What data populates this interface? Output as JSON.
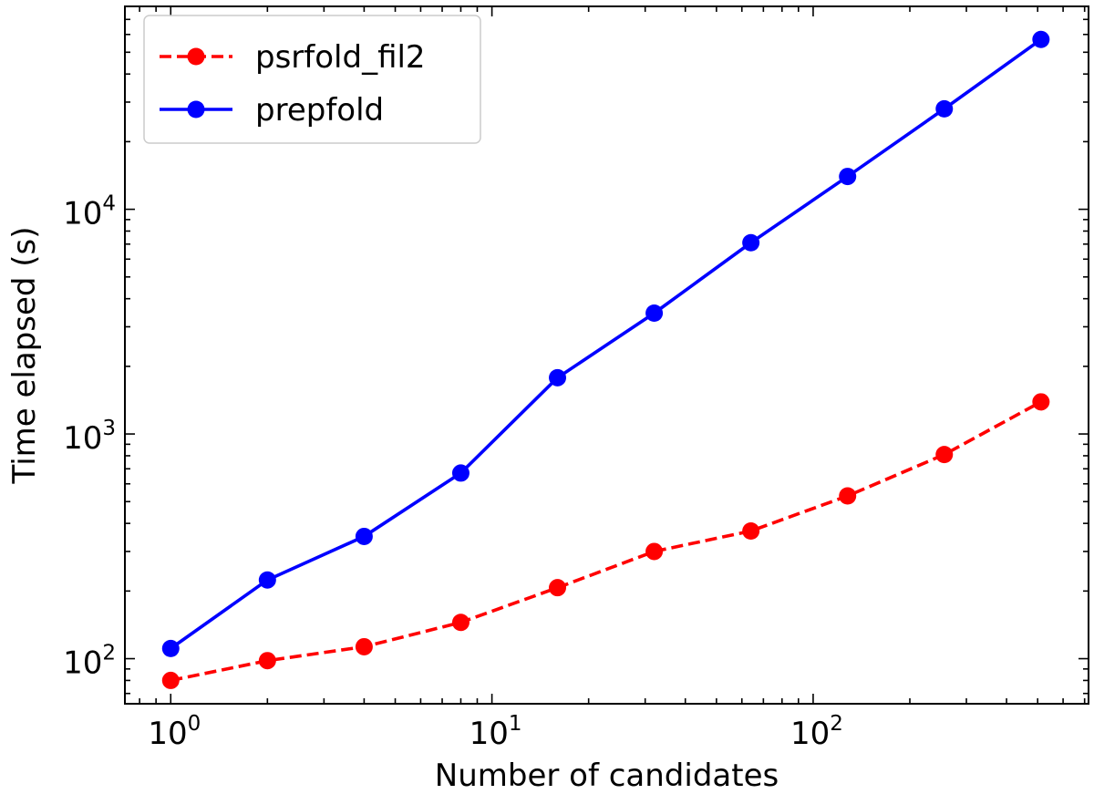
{
  "chart_data": {
    "type": "line",
    "xlabel": "Number of candidates",
    "ylabel": "Time elapsed (s)",
    "xscale": "log",
    "yscale": "log",
    "xlim": [
      0.72,
      720
    ],
    "ylim": [
      63,
      80000
    ],
    "x": [
      1,
      2,
      4,
      8,
      16,
      32,
      64,
      128,
      256,
      512
    ],
    "x_ticks": [
      {
        "value": 1,
        "base": "10",
        "exp": "0"
      },
      {
        "value": 10,
        "base": "10",
        "exp": "1"
      },
      {
        "value": 100,
        "base": "10",
        "exp": "2"
      }
    ],
    "y_ticks": [
      {
        "value": 100,
        "base": "10",
        "exp": "2"
      },
      {
        "value": 1000,
        "base": "10",
        "exp": "3"
      },
      {
        "value": 10000,
        "base": "10",
        "exp": "4"
      }
    ],
    "grid": false,
    "legend_position": "top-left",
    "series": [
      {
        "name": "psrfold_fil2",
        "color": "#ff0000",
        "linestyle": "dashed",
        "marker": "circle",
        "values": [
          80,
          98,
          113,
          145,
          207,
          300,
          370,
          530,
          810,
          1390
        ]
      },
      {
        "name": "prepfold",
        "color": "#0000ff",
        "linestyle": "solid",
        "marker": "circle",
        "values": [
          111,
          224,
          350,
          670,
          1780,
          3450,
          7100,
          14000,
          28000,
          57000
        ]
      }
    ]
  }
}
